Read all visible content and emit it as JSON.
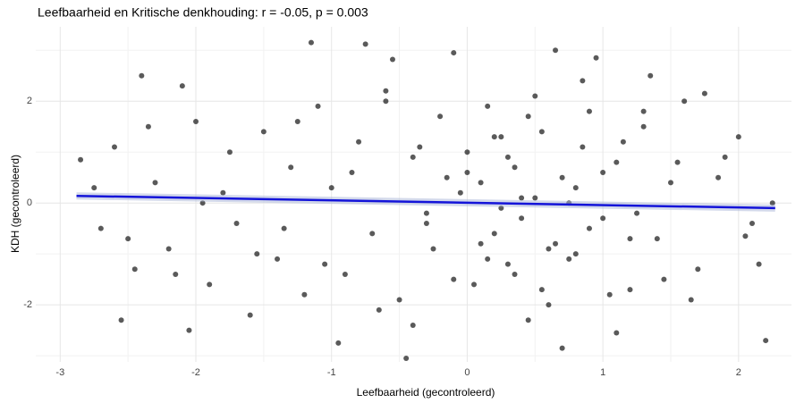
{
  "chart_data": {
    "type": "scatter",
    "title": "Leefbaarheid en Kritische denkhouding: r = -0.05, p = 0.003",
    "x_label": "Leefbaarheid (gecontroleerd)",
    "y_label": "KDH (gecontroleerd)",
    "xlim": [
      -3.18,
      2.39
    ],
    "ylim": [
      -3.12,
      3.46
    ],
    "xticks": [
      -3,
      -2,
      -1,
      0,
      1,
      2
    ],
    "yticks": [
      -2,
      0,
      2
    ],
    "grid": true,
    "series": [
      {
        "color": "#1a1a1a",
        "x": [
          -1.15,
          0.65,
          -0.75,
          -0.45,
          2.2,
          -2.85,
          2.25,
          -0.1,
          -0.55,
          0.95,
          -2.4,
          -2.1,
          -1.6,
          -2.05,
          -2.55,
          1.1,
          0.7,
          -0.95,
          1.6,
          2.05,
          1.75,
          -2.7,
          -2.6,
          -2.45,
          -2.3,
          -2.2,
          -2.0,
          -1.9,
          -1.8,
          -1.7,
          -1.5,
          -1.4,
          -1.3,
          -1.2,
          -1.1,
          -1.0,
          -0.9,
          -0.8,
          -0.7,
          -0.6,
          -0.5,
          -0.4,
          -0.3,
          -0.2,
          -0.1,
          0.0,
          0.1,
          0.2,
          0.3,
          0.4,
          0.5,
          0.6,
          0.7,
          0.8,
          0.9,
          1.0,
          1.1,
          1.2,
          1.3,
          1.4,
          1.5,
          1.7,
          1.9,
          2.1,
          -2.75,
          -2.5,
          -2.35,
          -2.15,
          -1.95,
          -1.75,
          -1.55,
          -1.35,
          -1.25,
          -1.05,
          -0.85,
          -0.65,
          -0.35,
          -0.25,
          -0.05,
          0.05,
          0.15,
          0.25,
          0.35,
          0.45,
          0.55,
          0.75,
          0.85,
          1.05,
          1.15,
          1.25,
          1.35,
          1.45,
          1.55,
          1.65,
          1.85,
          2.0,
          2.15,
          0.1,
          0.2,
          0.3,
          0.4,
          0.5,
          0.6,
          0.8,
          0.9,
          1.0,
          -0.3,
          -0.15,
          0.0,
          0.35,
          0.65,
          0.45,
          0.15,
          0.25,
          0.55,
          0.75,
          0.85,
          -0.4,
          -0.6,
          1.2,
          1.3
        ],
        "values": [
          3.15,
          3.0,
          3.12,
          -3.05,
          -2.7,
          0.85,
          0.0,
          2.95,
          2.82,
          2.85,
          2.5,
          2.3,
          -2.2,
          -2.5,
          -2.3,
          -2.55,
          -2.85,
          -2.75,
          2.0,
          -0.65,
          2.15,
          -0.5,
          1.1,
          -1.3,
          0.4,
          -0.9,
          1.6,
          -1.6,
          0.2,
          -0.4,
          1.4,
          -1.1,
          0.7,
          -1.8,
          1.9,
          0.3,
          -1.4,
          1.2,
          -0.6,
          2.2,
          -1.9,
          0.9,
          -0.2,
          1.7,
          -1.5,
          0.6,
          -0.8,
          1.3,
          -1.2,
          0.1,
          2.1,
          -2.0,
          0.5,
          -1.0,
          1.8,
          -0.3,
          0.8,
          -1.7,
          1.5,
          -0.7,
          0.4,
          -1.3,
          0.9,
          -0.4,
          0.3,
          -0.7,
          1.5,
          -1.4,
          0.0,
          1.0,
          -1.0,
          -0.5,
          1.6,
          -1.2,
          0.6,
          -2.1,
          1.1,
          -0.9,
          0.2,
          -1.6,
          1.9,
          -0.1,
          0.7,
          -2.3,
          1.4,
          -1.1,
          2.4,
          -1.8,
          1.2,
          -0.2,
          2.5,
          -1.5,
          0.8,
          -1.9,
          0.5,
          1.3,
          -1.2,
          0.4,
          -0.6,
          0.9,
          -0.3,
          0.1,
          -0.9,
          0.3,
          -0.5,
          0.6,
          -0.4,
          0.5,
          1.0,
          -1.4,
          -0.8,
          1.7,
          -1.1,
          1.3,
          -1.7,
          0.0,
          1.1,
          -2.4,
          2.0,
          -0.7,
          1.8
        ]
      }
    ],
    "trend": {
      "color": "#1414d9",
      "x": [
        -2.88,
        2.27
      ],
      "values": [
        0.14,
        -0.1
      ]
    }
  }
}
